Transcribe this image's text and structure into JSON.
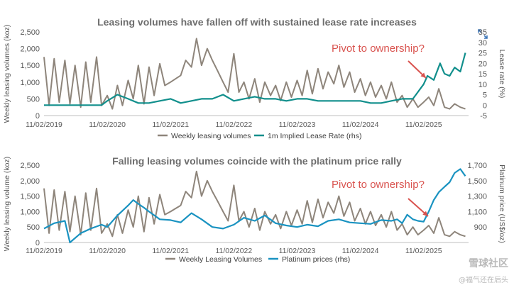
{
  "colors": {
    "volume": "#8e857b",
    "rate": "#118f8c",
    "price": "#1a93c1",
    "annotation": "#d9534f",
    "axis_text": "#595959",
    "axis_line": "#bfbfbf"
  },
  "icons": [
    "expand-icon",
    "annotation-arrow-icon"
  ],
  "watermark": {
    "line1": "雪球社区",
    "line2": "@福气还在后头"
  },
  "chart_data": [
    {
      "type": "line",
      "title": "Leasing volumes have fallen off with sustained lease rate increases",
      "ylabel": "Weekly leasing volumes (koz)",
      "y2label": "Lease rate (%)",
      "ylim": [
        0,
        2500
      ],
      "yticks": [
        0,
        500,
        1000,
        1500,
        2000,
        2500
      ],
      "ytick_labels": [
        "0",
        "500",
        "1,000",
        "1,500",
        "2,000",
        "2,500"
      ],
      "y2lim": [
        -5,
        35
      ],
      "y2ticks": [
        -5,
        0,
        5,
        10,
        15,
        20,
        25,
        30,
        35
      ],
      "y2tick_labels": [
        "-5",
        "0",
        "5",
        "10",
        "15",
        "20",
        "25",
        "30",
        "35"
      ],
      "xticks": [
        2019.84,
        2020.84,
        2021.84,
        2022.84,
        2023.84,
        2024.84,
        2025.84
      ],
      "xtick_labels": [
        "11/02/2019",
        "11/02/2020",
        "11/02/2021",
        "11/02/2022",
        "11/02/2023",
        "11/02/2024",
        "11/02/2025"
      ],
      "xlim": [
        2019.84,
        2026.55
      ],
      "annotation": "Pivot to ownership?",
      "grid": false,
      "legend_position": "bottom",
      "series": [
        {
          "name": "Weekly leasing volumes",
          "axis": "left",
          "x": [
            2019.84,
            2019.92,
            2020.0,
            2020.08,
            2020.17,
            2020.25,
            2020.33,
            2020.42,
            2020.5,
            2020.58,
            2020.67,
            2020.75,
            2020.84,
            2020.92,
            2021.0,
            2021.08,
            2021.17,
            2021.25,
            2021.33,
            2021.42,
            2021.5,
            2021.58,
            2021.67,
            2021.75,
            2021.84,
            2021.92,
            2022.0,
            2022.08,
            2022.17,
            2022.25,
            2022.33,
            2022.42,
            2022.5,
            2022.58,
            2022.67,
            2022.75,
            2022.84,
            2022.92,
            2023.0,
            2023.08,
            2023.17,
            2023.25,
            2023.33,
            2023.42,
            2023.5,
            2023.58,
            2023.67,
            2023.75,
            2023.84,
            2023.92,
            2024.0,
            2024.08,
            2024.17,
            2024.25,
            2024.33,
            2024.42,
            2024.5,
            2024.58,
            2024.67,
            2024.75,
            2024.84,
            2024.92,
            2025.0,
            2025.08,
            2025.17,
            2025.25,
            2025.33,
            2025.42,
            2025.5,
            2025.58,
            2025.67,
            2025.75,
            2025.84,
            2025.92,
            2026.0,
            2026.08,
            2026.17,
            2026.25,
            2026.33,
            2026.42,
            2026.5
          ],
          "values": [
            1750,
            300,
            1700,
            400,
            1650,
            350,
            1500,
            250,
            1600,
            400,
            1750,
            300,
            600,
            200,
            900,
            300,
            1050,
            500,
            1500,
            350,
            1450,
            600,
            1550,
            900,
            1000,
            1100,
            1200,
            1650,
            1450,
            2300,
            1500,
            2000,
            1650,
            1350,
            1000,
            700,
            1850,
            700,
            1000,
            500,
            1100,
            400,
            1000,
            600,
            900,
            450,
            1000,
            550,
            1050,
            600,
            1350,
            650,
            1400,
            800,
            1300,
            950,
            1500,
            850,
            1300,
            700,
            1100,
            600,
            1000,
            550,
            900,
            500,
            1000,
            400,
            600,
            250,
            500,
            250,
            400,
            550,
            300,
            800,
            250,
            200,
            350,
            250,
            200
          ]
        },
        {
          "name": "1m Implied Lease Rate (rhs)",
          "axis": "right",
          "x": [
            2019.84,
            2020.17,
            2020.5,
            2020.75,
            2020.84,
            2021.0,
            2021.17,
            2021.33,
            2021.5,
            2021.67,
            2021.84,
            2022.0,
            2022.17,
            2022.33,
            2022.5,
            2022.67,
            2022.84,
            2023.0,
            2023.17,
            2023.33,
            2023.5,
            2023.67,
            2023.84,
            2024.0,
            2024.17,
            2024.33,
            2024.5,
            2024.67,
            2024.84,
            2025.0,
            2025.17,
            2025.33,
            2025.5,
            2025.67,
            2025.84,
            2025.9,
            2026.0,
            2026.1,
            2026.17,
            2026.25,
            2026.33,
            2026.42,
            2026.5
          ],
          "values": [
            0,
            0,
            0,
            0,
            2,
            5,
            3,
            1,
            1,
            2,
            3,
            1,
            2,
            3,
            3,
            5,
            2,
            3,
            4,
            3,
            3,
            2,
            3,
            3,
            2,
            2,
            2,
            2,
            2,
            1,
            1,
            2,
            3,
            3,
            10,
            14,
            12,
            20,
            15,
            14,
            18,
            16,
            25
          ]
        }
      ]
    },
    {
      "type": "line",
      "title": "Falling leasing volumes coincide with the platinum price rally",
      "ylabel": "Weekly leasing volume (koz)",
      "y2label": "Platinum price (US$/oz)",
      "ylim": [
        0,
        2500
      ],
      "yticks": [
        0,
        500,
        1000,
        1500,
        2000,
        2500
      ],
      "ytick_labels": [
        "0",
        "500",
        "1,000",
        "1,500",
        "2,000",
        "2,500"
      ],
      "y2lim": [
        700,
        1700
      ],
      "y2ticks": [
        900,
        1100,
        1300,
        1500,
        1700
      ],
      "y2tick_labels": [
        "900",
        "1,100",
        "1,300",
        "1,500",
        "1,700"
      ],
      "xticks": [
        2019.84,
        2020.84,
        2021.84,
        2022.84,
        2023.84,
        2024.84,
        2025.84
      ],
      "xtick_labels": [
        "11/02/2019",
        "11/02/2020",
        "11/02/2021",
        "11/02/2022",
        "11/02/2023",
        "11/02/2024",
        "11/02/2025"
      ],
      "xlim": [
        2019.84,
        2026.55
      ],
      "annotation": "Pivot to ownership?",
      "grid": false,
      "legend_position": "bottom",
      "series": [
        {
          "name": "Weekly Leasing Volumes",
          "axis": "left",
          "x": [
            2019.84,
            2019.92,
            2020.0,
            2020.08,
            2020.17,
            2020.25,
            2020.33,
            2020.42,
            2020.5,
            2020.58,
            2020.67,
            2020.75,
            2020.84,
            2020.92,
            2021.0,
            2021.08,
            2021.17,
            2021.25,
            2021.33,
            2021.42,
            2021.5,
            2021.58,
            2021.67,
            2021.75,
            2021.84,
            2021.92,
            2022.0,
            2022.08,
            2022.17,
            2022.25,
            2022.33,
            2022.42,
            2022.5,
            2022.58,
            2022.67,
            2022.75,
            2022.84,
            2022.92,
            2023.0,
            2023.08,
            2023.17,
            2023.25,
            2023.33,
            2023.42,
            2023.5,
            2023.58,
            2023.67,
            2023.75,
            2023.84,
            2023.92,
            2024.0,
            2024.08,
            2024.17,
            2024.25,
            2024.33,
            2024.42,
            2024.5,
            2024.58,
            2024.67,
            2024.75,
            2024.84,
            2024.92,
            2025.0,
            2025.08,
            2025.17,
            2025.25,
            2025.33,
            2025.42,
            2025.5,
            2025.58,
            2025.67,
            2025.75,
            2025.84,
            2025.92,
            2026.0,
            2026.08,
            2026.17,
            2026.25,
            2026.33,
            2026.42,
            2026.5
          ],
          "values": [
            1750,
            300,
            1700,
            400,
            1650,
            350,
            1500,
            250,
            1600,
            400,
            1750,
            300,
            600,
            200,
            900,
            300,
            1050,
            500,
            1500,
            350,
            1450,
            600,
            1550,
            900,
            1000,
            1100,
            1200,
            1650,
            1450,
            2300,
            1500,
            2000,
            1650,
            1350,
            1000,
            700,
            1850,
            700,
            1000,
            500,
            1100,
            400,
            1000,
            600,
            900,
            450,
            1000,
            550,
            1050,
            600,
            1350,
            650,
            1400,
            800,
            1300,
            950,
            1500,
            850,
            1300,
            700,
            1100,
            600,
            1000,
            550,
            900,
            500,
            1000,
            400,
            600,
            250,
            500,
            250,
            400,
            550,
            300,
            800,
            250,
            200,
            350,
            250,
            200
          ]
        },
        {
          "name": "Platinum prices (rhs)",
          "axis": "right",
          "x": [
            2019.84,
            2020.0,
            2020.17,
            2020.25,
            2020.42,
            2020.58,
            2020.75,
            2020.84,
            2021.0,
            2021.17,
            2021.25,
            2021.33,
            2021.42,
            2021.5,
            2021.67,
            2021.84,
            2022.0,
            2022.17,
            2022.33,
            2022.5,
            2022.67,
            2022.84,
            2023.0,
            2023.17,
            2023.33,
            2023.5,
            2023.67,
            2023.84,
            2024.0,
            2024.17,
            2024.33,
            2024.5,
            2024.67,
            2024.84,
            2025.0,
            2025.17,
            2025.33,
            2025.42,
            2025.5,
            2025.58,
            2025.67,
            2025.75,
            2025.84,
            2025.92,
            2026.0,
            2026.08,
            2026.17,
            2026.25,
            2026.33,
            2026.42,
            2026.5
          ],
          "values": [
            880,
            950,
            980,
            700,
            820,
            880,
            930,
            900,
            1050,
            1180,
            1250,
            1200,
            1150,
            1100,
            1000,
            990,
            960,
            1080,
            1000,
            900,
            880,
            930,
            1020,
            980,
            1050,
            950,
            920,
            900,
            930,
            910,
            980,
            1000,
            960,
            950,
            940,
            990,
            980,
            1000,
            950,
            1060,
            1000,
            980,
            970,
            1100,
            1250,
            1350,
            1420,
            1480,
            1600,
            1650,
            1560
          ]
        }
      ]
    }
  ]
}
